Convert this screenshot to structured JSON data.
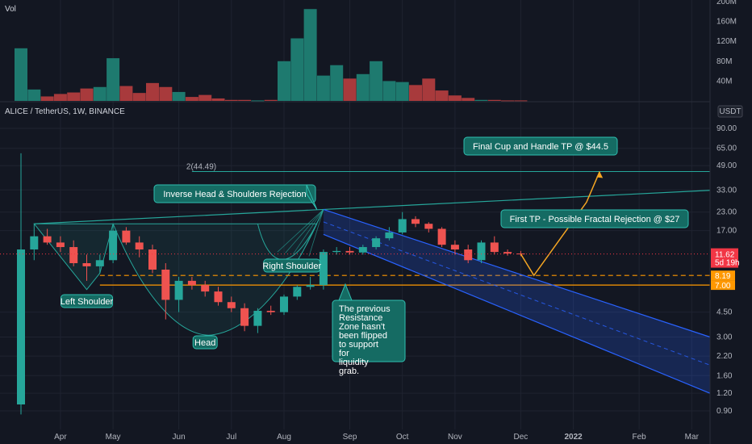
{
  "chart_data": {
    "type": "candlestick",
    "symbol_label": "ALICE / TetherUS, 1W, BINANCE",
    "volume_label": "Vol",
    "currency": "USDT",
    "y_scale": "log",
    "x_ticks": [
      {
        "label": "Apr",
        "i": 3
      },
      {
        "label": "May",
        "i": 7
      },
      {
        "label": "Jun",
        "i": 12
      },
      {
        "label": "Jul",
        "i": 16
      },
      {
        "label": "Aug",
        "i": 20
      },
      {
        "label": "Sep",
        "i": 25
      },
      {
        "label": "Oct",
        "i": 29
      },
      {
        "label": "Nov",
        "i": 33
      },
      {
        "label": "Dec",
        "i": 38
      },
      {
        "label": "2022",
        "i": 42
      },
      {
        "label": "Feb",
        "i": 47
      },
      {
        "label": "Mar",
        "i": 51
      }
    ],
    "y_ticks": [
      "90.00",
      "65.00",
      "49.00",
      "33.00",
      "23.00",
      "17.00",
      "4.50",
      "3.00",
      "2.20",
      "1.60",
      "1.20",
      "0.90"
    ],
    "y_tick_values": [
      90,
      65,
      49,
      33,
      23,
      17,
      4.5,
      3.0,
      2.2,
      1.6,
      1.2,
      0.9
    ],
    "vol_ticks": [
      "200M",
      "160M",
      "120M",
      "80M",
      "40M"
    ],
    "vol_tick_values": [
      200,
      160,
      120,
      80,
      40
    ],
    "candles": [
      {
        "o": 1.0,
        "h": 60.0,
        "l": 0.85,
        "c": 12.5
      },
      {
        "o": 12.5,
        "h": 19.0,
        "l": 10.5,
        "c": 15.5
      },
      {
        "o": 15.5,
        "h": 17.5,
        "l": 13.5,
        "c": 14.0
      },
      {
        "o": 14.0,
        "h": 15.5,
        "l": 12.0,
        "c": 13.0
      },
      {
        "o": 13.0,
        "h": 14.5,
        "l": 9.5,
        "c": 10.0
      },
      {
        "o": 10.0,
        "h": 11.5,
        "l": 7.5,
        "c": 9.5
      },
      {
        "o": 9.5,
        "h": 11.5,
        "l": 8.5,
        "c": 10.5
      },
      {
        "o": 10.5,
        "h": 19.0,
        "l": 10.0,
        "c": 17.0
      },
      {
        "o": 17.0,
        "h": 18.0,
        "l": 13.5,
        "c": 14.0
      },
      {
        "o": 14.0,
        "h": 15.5,
        "l": 11.0,
        "c": 12.5
      },
      {
        "o": 12.5,
        "h": 13.5,
        "l": 8.5,
        "c": 9.0
      },
      {
        "o": 9.0,
        "h": 10.0,
        "l": 4.0,
        "c": 5.5
      },
      {
        "o": 5.5,
        "h": 8.0,
        "l": 4.5,
        "c": 7.5
      },
      {
        "o": 7.5,
        "h": 8.0,
        "l": 6.5,
        "c": 7.0
      },
      {
        "o": 7.0,
        "h": 7.5,
        "l": 5.8,
        "c": 6.3
      },
      {
        "o": 6.3,
        "h": 6.8,
        "l": 5.0,
        "c": 5.3
      },
      {
        "o": 5.3,
        "h": 5.8,
        "l": 4.5,
        "c": 4.8
      },
      {
        "o": 4.8,
        "h": 5.2,
        "l": 3.3,
        "c": 3.6
      },
      {
        "o": 3.6,
        "h": 4.8,
        "l": 3.2,
        "c": 4.6
      },
      {
        "o": 4.6,
        "h": 5.0,
        "l": 4.3,
        "c": 4.5
      },
      {
        "o": 4.5,
        "h": 6.0,
        "l": 4.3,
        "c": 5.8
      },
      {
        "o": 5.8,
        "h": 7.0,
        "l": 5.5,
        "c": 6.8
      },
      {
        "o": 6.8,
        "h": 8.0,
        "l": 6.5,
        "c": 7.0
      },
      {
        "o": 7.0,
        "h": 12.5,
        "l": 6.5,
        "c": 12.0
      },
      {
        "o": 12.0,
        "h": 13.0,
        "l": 11.5,
        "c": 12.2
      },
      {
        "o": 12.2,
        "h": 13.0,
        "l": 11.5,
        "c": 11.9
      },
      {
        "o": 11.9,
        "h": 13.5,
        "l": 11.5,
        "c": 13.0
      },
      {
        "o": 13.0,
        "h": 15.5,
        "l": 12.5,
        "c": 15.0
      },
      {
        "o": 15.0,
        "h": 18.0,
        "l": 14.5,
        "c": 16.5
      },
      {
        "o": 16.5,
        "h": 23.0,
        "l": 16.0,
        "c": 20.5
      },
      {
        "o": 20.5,
        "h": 21.5,
        "l": 18.0,
        "c": 19.0
      },
      {
        "o": 19.0,
        "h": 19.5,
        "l": 16.5,
        "c": 17.5
      },
      {
        "o": 17.5,
        "h": 18.0,
        "l": 13.0,
        "c": 13.5
      },
      {
        "o": 13.5,
        "h": 14.5,
        "l": 11.5,
        "c": 12.5
      },
      {
        "o": 12.5,
        "h": 13.5,
        "l": 10.0,
        "c": 10.5
      },
      {
        "o": 10.5,
        "h": 14.5,
        "l": 10.0,
        "c": 14.0
      },
      {
        "o": 14.0,
        "h": 15.5,
        "l": 11.5,
        "c": 12.0
      },
      {
        "o": 12.0,
        "h": 12.5,
        "l": 11.3,
        "c": 11.7
      },
      {
        "o": 11.7,
        "h": 12.2,
        "l": 11.2,
        "c": 11.62
      }
    ],
    "volumes": [
      106,
      23,
      9,
      14,
      17,
      25,
      28,
      86,
      30,
      16,
      36,
      28,
      18,
      8,
      12,
      5,
      2,
      2,
      1,
      2,
      80,
      126,
      185,
      51,
      72,
      45,
      54,
      80,
      40,
      38,
      32,
      45,
      21,
      11,
      6,
      2,
      2,
      1,
      1
    ],
    "price_label": {
      "value": "11.62",
      "sub": "5d 19h"
    },
    "levels": [
      {
        "label": "8.19",
        "value": 8.19,
        "color": "#ff9800",
        "style": "dashed"
      },
      {
        "label": "7.00",
        "value": 7.0,
        "color": "#ff9800",
        "style": "solid"
      }
    ],
    "fib_label": "2(44.49)",
    "fib_value": 44.49,
    "fib_color": "#26a69a",
    "annotations": [
      {
        "text": "Final Cup and Handle TP @ $44.5"
      },
      {
        "text": "Inverse Head & Shoulders Rejection"
      },
      {
        "text": "First TP - Possible Fractal Rejection @ $27"
      },
      {
        "text": "Left Shoulder"
      },
      {
        "text": "Head"
      },
      {
        "text": "Right Shoulder"
      },
      {
        "text": "The previous Resistance Zone hasn't been flipped to support for liquidity grab."
      }
    ],
    "colors": {
      "up": "#26a69a",
      "down": "#ef5350",
      "vol_up": "#1e7a6f",
      "vol_down": "#a83a3c",
      "background": "#131722",
      "grid": "#1f2330",
      "label_bg": "#156b63",
      "label_border": "#2fbfb0",
      "channel": "#2962ff",
      "projection": "#f5a623",
      "last_price": "#f23645"
    }
  }
}
